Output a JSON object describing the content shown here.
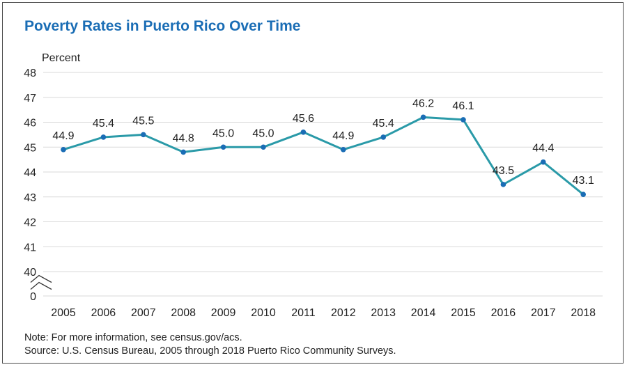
{
  "notes": {
    "note": "Note: For more information, see census.gov/acs.",
    "source": "Source: U.S. Census Bureau, 2005 through 2018 Puerto Rico Community Surveys."
  },
  "colors": {
    "title": "#1a6db5",
    "line": "#2a9aa8",
    "marker": "#1a6db5",
    "grid": "#d9d9d9"
  },
  "chart_data": {
    "type": "line",
    "title": "Poverty Rates in Puerto Rico Over Time",
    "ylabel": "Percent",
    "xlabel": "",
    "x": [
      "2005",
      "2006",
      "2007",
      "2008",
      "2009",
      "2010",
      "2011",
      "2012",
      "2013",
      "2014",
      "2015",
      "2016",
      "2017",
      "2018"
    ],
    "series": [
      {
        "values": [
          44.9,
          45.4,
          45.5,
          44.8,
          45.0,
          45.0,
          45.6,
          44.9,
          45.4,
          46.2,
          46.1,
          43.5,
          44.4,
          43.1
        ],
        "labels": [
          "44.9",
          "45.4",
          "45.5",
          "44.8",
          "45.0",
          "45.0",
          "45.6",
          "44.9",
          "45.4",
          "46.2",
          "46.1",
          "43.5",
          "44.4",
          "43.1"
        ]
      }
    ],
    "ylim": [
      40,
      48
    ],
    "yticks": [
      "40",
      "41",
      "42",
      "43",
      "44",
      "45",
      "46",
      "47",
      "48"
    ],
    "axis_break": true,
    "break_baseline_label": "0",
    "grid": true
  }
}
